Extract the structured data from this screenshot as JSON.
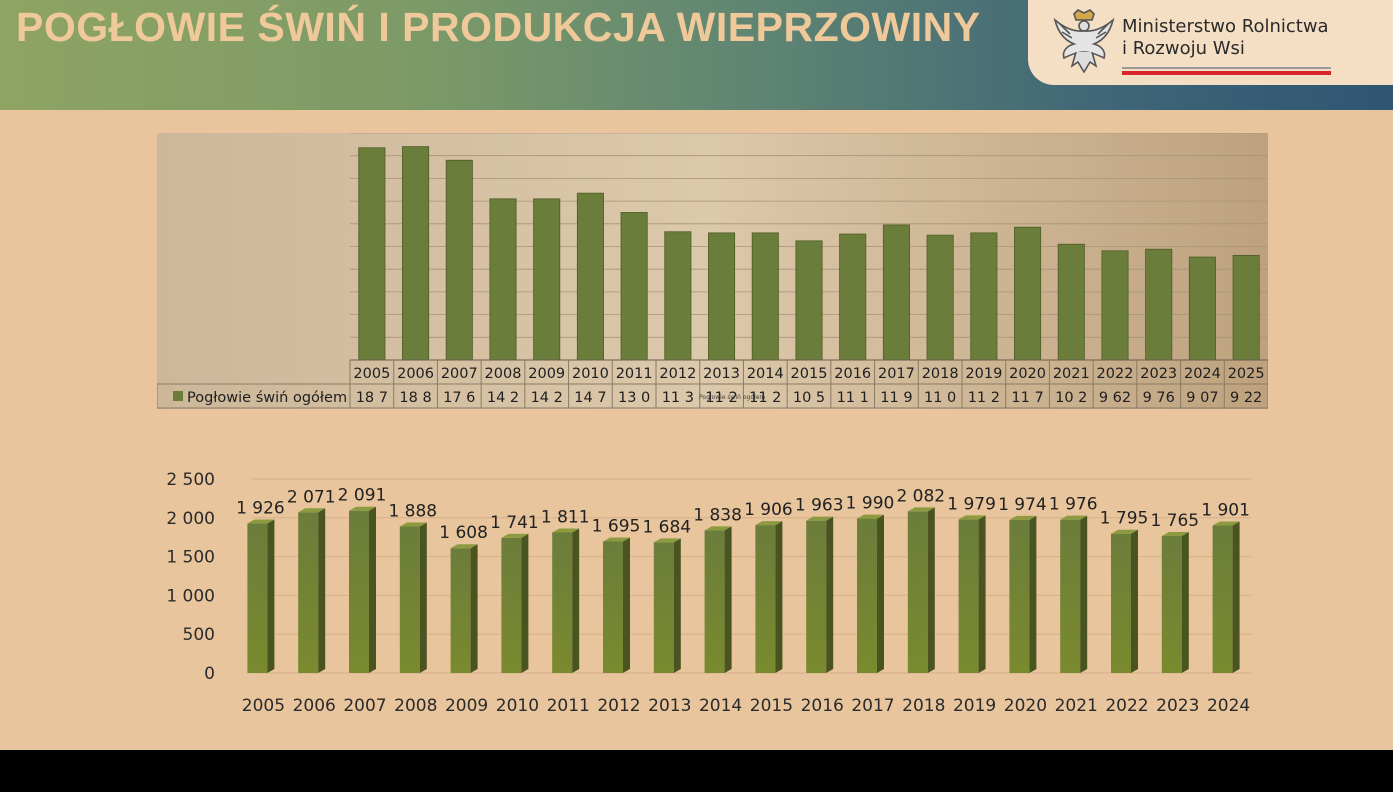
{
  "title": "POGŁOWIE ŚWIŃ I PRODUKCJA WIEPRZOWINY",
  "logo": {
    "line1": "Ministerstwo Rolnictwa",
    "line2": "i Rozwoju Wsi",
    "emblem_icon": "polish-eagle-emblem",
    "accent_red": "#d8262e"
  },
  "colors": {
    "bar_fill": "#6b7d3b",
    "bar_fill_bottom": "#7a8a2e",
    "background": "#e8c59d"
  },
  "chart_data": [
    {
      "type": "bar",
      "categories": [
        "2005",
        "2006",
        "2007",
        "2008",
        "2009",
        "2010",
        "2011",
        "2012",
        "2013",
        "2014",
        "2015",
        "2016",
        "2017",
        "2018",
        "2019",
        "2020",
        "2021",
        "2022",
        "2023",
        "2024",
        "2025"
      ],
      "series": [
        {
          "name": "Pogłowie świń ogółem",
          "values": [
            18.7,
            18.8,
            17.6,
            14.2,
            14.2,
            14.7,
            13.0,
            11.3,
            11.2,
            11.2,
            10.5,
            11.1,
            11.9,
            11.0,
            11.2,
            11.7,
            10.2,
            9.62,
            9.76,
            9.07,
            9.22
          ],
          "table_labels": [
            "18 7",
            "18 8",
            "17 6",
            "14 2",
            "14 2",
            "14 7",
            "13 0",
            "11 3",
            "11 2",
            "11 2",
            "10 5",
            "11 1",
            "11 9",
            "11 0",
            "11 2",
            "11 7",
            "10 2",
            "9 62",
            "9 76",
            "9 07",
            "9 22"
          ]
        }
      ],
      "overlay_note": "Pogłowie świń ogółem",
      "ylim": [
        0,
        20
      ],
      "grid": true,
      "legend": "data-table-left"
    },
    {
      "type": "bar",
      "categories": [
        "2005",
        "2006",
        "2007",
        "2008",
        "2009",
        "2010",
        "2011",
        "2012",
        "2013",
        "2014",
        "2015",
        "2016",
        "2017",
        "2018",
        "2019",
        "2020",
        "2021",
        "2022",
        "2023",
        "2024"
      ],
      "values": [
        1926,
        2071,
        2091,
        1888,
        1608,
        1741,
        1811,
        1695,
        1684,
        1838,
        1906,
        1963,
        1990,
        2082,
        1979,
        1974,
        1976,
        1795,
        1765,
        1901
      ],
      "value_labels": [
        "1 926",
        "2 071",
        "2 091",
        "1 888",
        "1 608",
        "1 741",
        "1 811",
        "1 695",
        "1 684",
        "1 838",
        "1 906",
        "1 963",
        "1 990",
        "2 082",
        "1 979",
        "1 974",
        "1 976",
        "1 795",
        "1 765",
        "1 901"
      ],
      "yticks": [
        "0",
        "500",
        "1 000",
        "1 500",
        "2 000",
        "2 500"
      ],
      "ylim": [
        0,
        2500
      ],
      "grid": true
    }
  ]
}
